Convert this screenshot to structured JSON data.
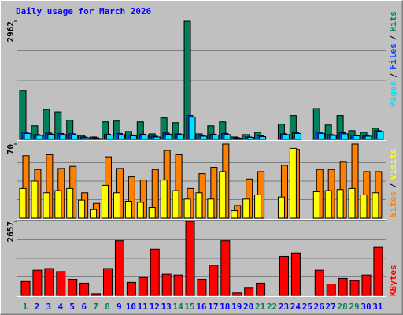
{
  "chart_data": [
    {
      "type": "bar",
      "title": "Daily usage for March 2026",
      "ylim": [
        0,
        2962
      ],
      "yticks": [
        2962
      ],
      "legend_separator": "/",
      "series": [
        {
          "name": "Pages",
          "color": "#00e0ff",
          "values": [
            150,
            100,
            130,
            120,
            110,
            40,
            20,
            110,
            120,
            90,
            110,
            60,
            130,
            120,
            560,
            80,
            110,
            120,
            30,
            50,
            70,
            0,
            120,
            150,
            0,
            150,
            100,
            140,
            90,
            80,
            200
          ]
        },
        {
          "name": "Files",
          "color": "#0040ff",
          "values": [
            180,
            120,
            160,
            150,
            140,
            60,
            40,
            130,
            150,
            110,
            130,
            80,
            160,
            140,
            600,
            100,
            130,
            150,
            40,
            60,
            90,
            0,
            140,
            170,
            0,
            180,
            120,
            170,
            110,
            100,
            220
          ]
        },
        {
          "name": "Hits",
          "color": "#00805c",
          "values": [
            1230,
            340,
            750,
            690,
            480,
            100,
            60,
            440,
            460,
            200,
            440,
            140,
            540,
            420,
            2962,
            140,
            340,
            440,
            60,
            120,
            180,
            0,
            380,
            600,
            0,
            770,
            360,
            600,
            220,
            180,
            280
          ]
        }
      ]
    },
    {
      "type": "bar",
      "ylim": [
        0,
        70
      ],
      "yticks": [
        70
      ],
      "legend_separator": "/",
      "series": [
        {
          "name": "Sites",
          "color": "#ff8000",
          "values": [
            59,
            46,
            60,
            47,
            49,
            24,
            14,
            58,
            47,
            39,
            36,
            46,
            64,
            60,
            28,
            42,
            48,
            70,
            12,
            37,
            44,
            0,
            50,
            65,
            0,
            46,
            46,
            53,
            70,
            44,
            44
          ]
        },
        {
          "name": "Visits",
          "color": "#ffff00",
          "values": [
            28,
            35,
            24,
            26,
            28,
            17,
            8,
            31,
            24,
            16,
            15,
            10,
            36,
            26,
            18,
            24,
            18,
            44,
            7,
            18,
            22,
            0,
            20,
            66,
            0,
            25,
            26,
            27,
            28,
            22,
            24
          ]
        }
      ]
    },
    {
      "type": "bar",
      "ylim": [
        0,
        2657
      ],
      "yticks": [
        2657
      ],
      "categories": [
        "1",
        "2",
        "3",
        "4",
        "5",
        "6",
        "7",
        "8",
        "9",
        "10",
        "11",
        "12",
        "13",
        "14",
        "15",
        "16",
        "17",
        "18",
        "19",
        "20",
        "21",
        "22",
        "23",
        "24",
        "25",
        "26",
        "27",
        "28",
        "29",
        "30",
        "31"
      ],
      "category_colors": [
        "#00805c",
        "#0000ff",
        "#0000ff",
        "#0000ff",
        "#0000ff",
        "#0000ff",
        "#00805c",
        "#00805c",
        "#0000ff",
        "#0000ff",
        "#0000ff",
        "#0000ff",
        "#0000ff",
        "#00805c",
        "#00805c",
        "#0000ff",
        "#0000ff",
        "#0000ff",
        "#0000ff",
        "#0000ff",
        "#00805c",
        "#00805c",
        "#0000ff",
        "#0000ff",
        "#0000ff",
        "#0000ff",
        "#0000ff",
        "#00805c",
        "#00805c",
        "#0000ff",
        "#0000ff"
      ],
      "series": [
        {
          "name": "KBytes",
          "color": "#ff0000",
          "values": [
            500,
            900,
            960,
            850,
            580,
            440,
            60,
            960,
            1960,
            470,
            640,
            1660,
            760,
            730,
            2657,
            580,
            1080,
            1960,
            90,
            260,
            440,
            0,
            1400,
            1520,
            0,
            900,
            410,
            610,
            530,
            730,
            1720
          ]
        }
      ]
    }
  ]
}
